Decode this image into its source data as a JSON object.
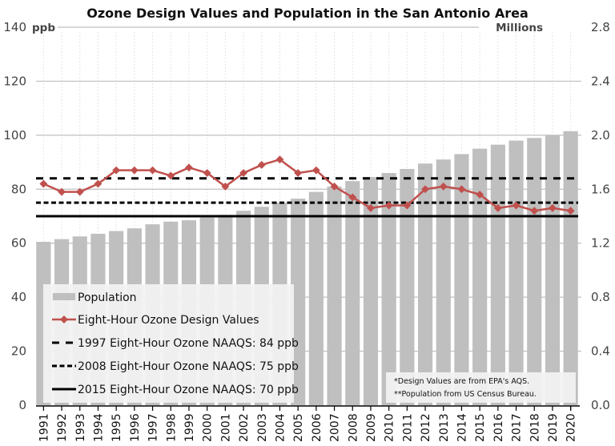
{
  "chart_data": {
    "type": "bar",
    "title": "Ozone Design Values and Population in the San Antonio Area",
    "xlabel": "",
    "ylabel_left": "ppb",
    "ylabel_right": "Millions",
    "ylim_left": [
      0,
      140
    ],
    "ylim_right": [
      0.0,
      2.8
    ],
    "yticks_left": [
      "0",
      "20",
      "40",
      "60",
      "80",
      "100",
      "120",
      "140"
    ],
    "yticks_right": [
      "0.0",
      "0.4",
      "0.8",
      "1.2",
      "1.6",
      "2.0",
      "2.4",
      "2.8"
    ],
    "grid": true,
    "categories": [
      "1991",
      "1992",
      "1993",
      "1994",
      "1995",
      "1996",
      "1997",
      "1998",
      "1999",
      "2000",
      "2001",
      "2002",
      "2003",
      "2004",
      "2005",
      "2006",
      "2007",
      "2008",
      "2009",
      "2010",
      "2011",
      "2012",
      "2013",
      "2014",
      "2015",
      "2016",
      "2017",
      "2018",
      "2019",
      "2020"
    ],
    "series": [
      {
        "name": "Population",
        "type": "bar",
        "axis": "right",
        "color": "#bfbfbf",
        "values": [
          1.21,
          1.23,
          1.25,
          1.27,
          1.29,
          1.31,
          1.34,
          1.36,
          1.37,
          1.39,
          1.41,
          1.44,
          1.47,
          1.5,
          1.53,
          1.58,
          1.62,
          1.66,
          1.69,
          1.72,
          1.75,
          1.79,
          1.82,
          1.86,
          1.9,
          1.93,
          1.96,
          1.98,
          2.0,
          2.03
        ]
      },
      {
        "name": "Eight-Hour Ozone Design Values",
        "type": "line",
        "axis": "left",
        "color": "#c0504d",
        "marker": "diamond",
        "values": [
          82,
          79,
          79,
          82,
          87,
          87,
          87,
          85,
          88,
          86,
          81,
          86,
          89,
          91,
          86,
          87,
          81,
          77,
          73,
          74,
          74,
          80,
          81,
          80,
          78,
          73,
          74,
          72,
          73,
          72
        ]
      }
    ],
    "reference_lines": [
      {
        "name": "1997 Eight-Hour Ozone NAAQS: 84 ppb",
        "value": 84,
        "style": "long-dash",
        "color": "#000000"
      },
      {
        "name": "2008 Eight-Hour Ozone NAAQS: 75 ppb",
        "value": 75,
        "style": "short-dash",
        "color": "#000000"
      },
      {
        "name": "2015 Eight-Hour Ozone NAAQS: 70 ppb",
        "value": 70,
        "style": "solid",
        "color": "#000000"
      }
    ],
    "legend": {
      "placement": "bottom-left",
      "entries": [
        "Population",
        "Eight-Hour Ozone Design Values",
        "1997 Eight-Hour Ozone NAAQS: 84 ppb",
        "2008 Eight-Hour Ozone NAAQS: 75 ppb",
        "2015 Eight-Hour Ozone NAAQS: 70 ppb"
      ]
    },
    "annotations": [
      "*Design Values are from EPA's AQS.",
      "**Population from US Census Bureau."
    ]
  }
}
